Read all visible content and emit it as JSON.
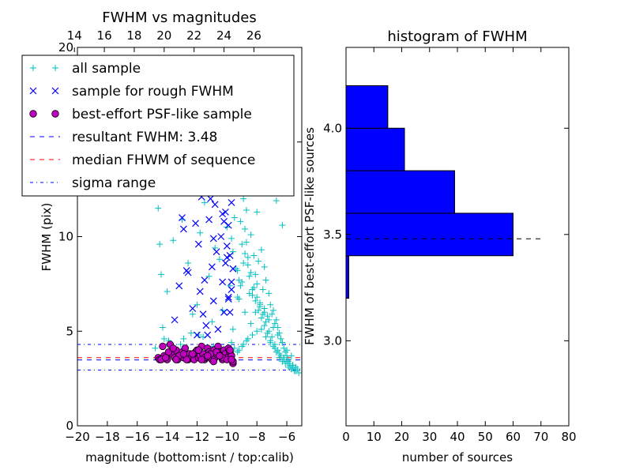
{
  "chart_data": [
    {
      "panel": "left",
      "type": "scatter",
      "title": "FWHM vs magnitudes",
      "xlabel": "magnitude (bottom:isnt / top:calib)",
      "ylabel": "FWHM (pix)",
      "xlim": [
        -20,
        -5
      ],
      "ylim": [
        0,
        20
      ],
      "xticks": [
        -20,
        -18,
        -16,
        -14,
        -12,
        -10,
        -8,
        -6
      ],
      "xtick_labels": [
        "−20",
        "−18",
        "−16",
        "−14",
        "−12",
        "−10",
        "−8",
        "−6"
      ],
      "yticks": [
        0,
        5,
        10,
        15,
        20
      ],
      "ytick_labels": [
        "0",
        "5",
        "10",
        "15",
        "20"
      ],
      "top_xticks_calib": [
        14,
        16,
        18,
        20,
        22,
        24,
        26
      ],
      "top_xtick_labels": [
        "14",
        "16",
        "18",
        "20",
        "22",
        "24",
        "26"
      ],
      "grid": false,
      "legend_position": "top-left",
      "legend": [
        {
          "label": "all sample",
          "marker": "plus",
          "color": "#00BFBF"
        },
        {
          "label": "sample for rough FWHM",
          "marker": "x",
          "color": "#0000FF"
        },
        {
          "label": "best-effort PSF-like sample",
          "marker": "circle",
          "color": "#BF00BF"
        },
        {
          "label": "resultant FWHM: 3.48",
          "marker": "dashed",
          "color": "#0000FF"
        },
        {
          "label": "median FHWM of sequence",
          "marker": "dashed",
          "color": "#FF0000"
        },
        {
          "label": "sigma range",
          "marker": "dashdot",
          "color": "#0000FF"
        }
      ],
      "hlines": [
        {
          "name": "resultant FWHM",
          "y": 3.48,
          "style": "dashed",
          "color": "#0000FF"
        },
        {
          "name": "median FHWM of sequence",
          "y": 3.6,
          "style": "dashed",
          "color": "#FF0000"
        },
        {
          "name": "sigma upper",
          "y": 4.3,
          "style": "dashdot",
          "color": "#0000FF"
        },
        {
          "name": "sigma lower",
          "y": 2.95,
          "style": "dashdot",
          "color": "#0000FF"
        }
      ],
      "series": [
        {
          "name": "all sample",
          "marker": "plus",
          "color": "#00BFBF",
          "x": [
            -14.6,
            -14.5,
            -14.4,
            -14.3,
            -14.2,
            -14.0,
            -13.6,
            -13.3,
            -13.0,
            -12.6,
            -12.3,
            -12.0,
            -11.8,
            -11.5,
            -11.2,
            -11.0,
            -10.8,
            -10.6,
            -10.5,
            -10.3,
            -10.2,
            -10.0,
            -9.9,
            -9.8,
            -9.7,
            -9.6,
            -9.5,
            -9.4,
            -9.3,
            -9.2,
            -9.1,
            -9.0,
            -9.0,
            -8.9,
            -8.8,
            -8.8,
            -8.7,
            -8.6,
            -8.5,
            -8.5,
            -8.4,
            -8.3,
            -8.2,
            -8.1,
            -8.0,
            -8.0,
            -7.9,
            -7.8,
            -7.7,
            -7.6,
            -7.5,
            -7.5,
            -7.4,
            -7.3,
            -7.2,
            -7.1,
            -7.0,
            -6.9,
            -6.8,
            -6.7,
            -6.6,
            -6.5,
            -6.4,
            -6.3,
            -6.2,
            -6.1,
            -6.0,
            -5.9,
            -5.8,
            -5.7,
            -5.6,
            -5.5,
            -5.4,
            -5.3,
            -5.2,
            -9.6,
            -9.4,
            -9.2,
            -9.0,
            -8.8,
            -8.6,
            -8.4,
            -8.2,
            -8.0,
            -7.8,
            -7.6,
            -7.4,
            -7.2,
            -7.0,
            -6.8,
            -6.6,
            -6.4,
            -6.2,
            -6.0,
            -5.8,
            -5.6,
            -5.4,
            -9.3,
            -9.1,
            -8.9,
            -8.7,
            -8.5,
            -8.3,
            -8.1,
            -7.9,
            -7.7,
            -7.5,
            -7.3,
            -7.1,
            -6.9,
            -6.7,
            -6.5,
            -6.3,
            -6.1,
            -5.9,
            -5.7,
            -5.5,
            -9.7,
            -9.5,
            -9.2,
            -8.9,
            -8.6,
            -8.3,
            -8.0,
            -7.7,
            -7.4,
            -7.1,
            -6.8,
            -6.5,
            -6.2,
            -5.9,
            -5.6,
            -9.8,
            -9.6,
            -9.3,
            -9.0,
            -8.7,
            -8.4,
            -8.1,
            -7.8,
            -7.5,
            -7.2,
            -6.9,
            -6.6,
            -6.3,
            -6.0,
            -5.7,
            -13.1,
            -12.4,
            -11.6,
            -10.9,
            -14.8,
            -13.9,
            -12.9,
            -11.9,
            -9.9,
            -9.5,
            -9.1,
            -8.7,
            -8.3,
            -7.9,
            -7.5,
            -7.1,
            -6.7,
            -6.3
          ],
          "y": [
            11.5,
            9.6,
            8.0,
            5.2,
            4.6,
            7.1,
            9.8,
            12.3,
            10.9,
            8.6,
            5.9,
            6.4,
            10.2,
            11.8,
            7.9,
            5.5,
            9.4,
            13.0,
            8.8,
            6.1,
            12.6,
            10.5,
            14.2,
            7.4,
            9.9,
            5.1,
            11.0,
            13.6,
            8.2,
            6.7,
            10.8,
            15.4,
            7.6,
            12.0,
            9.1,
            6.0,
            11.4,
            8.5,
            13.8,
            7.0,
            10.1,
            6.9,
            9.0,
            8.0,
            11.3,
            7.5,
            8.7,
            6.5,
            9.3,
            7.2,
            8.4,
            6.2,
            7.7,
            5.8,
            7.0,
            6.4,
            5.9,
            6.1,
            5.4,
            5.6,
            5.2,
            4.9,
            4.6,
            4.4,
            4.1,
            3.9,
            3.7,
            3.5,
            3.3,
            3.0,
            3.2,
            2.9,
            3.1,
            3.0,
            2.8,
            9.2,
            8.3,
            7.7,
            9.6,
            10.4,
            8.9,
            8.1,
            7.3,
            6.8,
            6.3,
            5.9,
            5.5,
            5.0,
            4.7,
            4.3,
            4.0,
            3.7,
            3.5,
            3.4,
            3.2,
            3.1,
            2.9,
            6.8,
            7.4,
            8.6,
            9.7,
            7.9,
            7.2,
            6.6,
            6.1,
            5.7,
            5.3,
            4.9,
            4.5,
            4.2,
            3.9,
            3.6,
            3.4,
            3.3,
            3.1,
            3.0,
            2.9,
            4.4,
            4.1,
            4.0,
            4.3,
            4.6,
            4.8,
            5.0,
            5.1,
            4.7,
            4.4,
            4.1,
            3.8,
            3.6,
            3.4,
            3.2,
            3.6,
            3.5,
            3.9,
            4.2,
            4.5,
            5.4,
            6.0,
            6.4,
            6.0,
            5.6,
            5.2,
            4.8,
            4.4,
            4.0,
            3.7,
            4.3,
            4.9,
            4.7,
            4.2,
            4.1,
            4.5,
            4.6,
            4.8,
            16.5,
            17.9,
            19.0,
            18.3,
            16.8,
            15.2,
            14.1,
            12.7,
            11.9,
            10.6
          ]
        },
        {
          "name": "sample for rough FWHM",
          "marker": "x",
          "color": "#0000FF",
          "x": [
            -13.5,
            -13.2,
            -12.9,
            -12.6,
            -12.3,
            -12.0,
            -11.9,
            -11.7,
            -11.5,
            -11.4,
            -11.2,
            -11.0,
            -10.9,
            -10.8,
            -10.7,
            -10.6,
            -10.5,
            -10.4,
            -10.3,
            -10.2,
            -10.1,
            -10.0,
            -10.0,
            -9.9,
            -9.9,
            -9.8,
            -9.8,
            -9.7,
            -9.7,
            -9.6,
            -13.0,
            -12.4,
            -11.8,
            -11.3,
            -10.9,
            -10.5,
            -10.2,
            -10.0,
            -9.8,
            -9.7,
            -12.7,
            -12.1,
            -11.6,
            -11.1,
            -10.7,
            -10.3,
            -10.1,
            -9.9,
            -13.3,
            -12.8
          ],
          "y": [
            5.6,
            7.4,
            10.4,
            8.1,
            6.2,
            4.8,
            9.6,
            12.1,
            7.7,
            5.3,
            10.9,
            8.4,
            6.6,
            11.7,
            9.2,
            5.1,
            12.8,
            10.0,
            7.6,
            6.0,
            11.3,
            13.2,
            8.9,
            10.6,
            6.8,
            12.4,
            9.0,
            7.2,
            11.8,
            8.3,
            11.0,
            12.4,
            7.1,
            4.8,
            9.9,
            12.9,
            10.8,
            9.5,
            6.0,
            7.6,
            8.2,
            10.7,
            5.9,
            12.0,
            13.1,
            11.2,
            8.6,
            6.7,
            12.6,
            13.3
          ]
        },
        {
          "name": "best-effort PSF-like sample",
          "marker": "circle",
          "color": "#BF00BF",
          "x": [
            -14.6,
            -14.5,
            -14.3,
            -14.2,
            -14.0,
            -13.8,
            -13.7,
            -13.5,
            -13.4,
            -13.3,
            -13.1,
            -13.0,
            -12.9,
            -12.8,
            -12.6,
            -12.5,
            -12.4,
            -12.2,
            -12.1,
            -12.0,
            -11.9,
            -11.8,
            -11.7,
            -11.6,
            -11.5,
            -11.4,
            -11.3,
            -11.2,
            -11.1,
            -11.0,
            -10.9,
            -10.8,
            -10.7,
            -10.6,
            -10.5,
            -10.4,
            -10.3,
            -10.2,
            -10.1,
            -10.0,
            -9.9,
            -9.8,
            -9.7,
            -9.6,
            -14.4,
            -13.9,
            -13.6,
            -13.2,
            -12.7,
            -12.3,
            -11.9,
            -11.5,
            -11.1,
            -10.7,
            -10.3,
            -10.0,
            -9.8,
            -9.6,
            -14.1,
            -12.9,
            -11.7,
            -10.5,
            -13.4,
            -11.3,
            -10.9,
            -9.7
          ],
          "y": [
            3.6,
            3.5,
            4.2,
            3.7,
            3.5,
            4.3,
            3.8,
            3.6,
            4.0,
            3.5,
            3.7,
            3.9,
            3.6,
            4.1,
            3.5,
            3.8,
            3.6,
            3.5,
            3.9,
            4.0,
            3.6,
            3.7,
            4.2,
            3.8,
            3.5,
            3.6,
            4.1,
            3.9,
            3.7,
            3.5,
            4.0,
            3.6,
            3.8,
            4.2,
            3.9,
            3.7,
            3.5,
            4.0,
            3.8,
            3.6,
            4.1,
            3.9,
            3.7,
            3.3,
            3.5,
            3.9,
            4.1,
            3.7,
            3.5,
            3.8,
            4.0,
            3.6,
            3.8,
            3.9,
            3.6,
            3.5,
            4.0,
            3.4,
            3.6,
            3.8,
            3.5,
            3.7,
            3.5,
            3.7,
            3.4,
            3.5
          ]
        }
      ]
    },
    {
      "panel": "right",
      "type": "bar",
      "orientation": "horizontal",
      "title": "histogram of FWHM",
      "xlabel": "number of sources",
      "ylabel": "FWHM of best-effort PSF-like sources",
      "xlim": [
        0,
        80
      ],
      "ylim": [
        2.6,
        4.38
      ],
      "xticks": [
        0,
        10,
        20,
        30,
        40,
        50,
        60,
        70,
        80
      ],
      "xtick_labels": [
        "0",
        "10",
        "20",
        "30",
        "40",
        "50",
        "60",
        "70",
        "80"
      ],
      "yticks": [
        3.0,
        3.5,
        4.0
      ],
      "ytick_labels": [
        "3.0",
        "3.5",
        "4.0"
      ],
      "color": "#0000FF",
      "bins": [
        {
          "low": 3.2,
          "high": 3.4,
          "count": 1
        },
        {
          "low": 3.4,
          "high": 3.6,
          "count": 60
        },
        {
          "low": 3.6,
          "high": 3.8,
          "count": 39
        },
        {
          "low": 3.8,
          "high": 4.0,
          "count": 21
        },
        {
          "low": 4.0,
          "high": 4.2,
          "count": 15
        }
      ],
      "hline": {
        "y": 3.48,
        "x_range": [
          0,
          71.5
        ],
        "style": "dashed",
        "color": "#000000"
      }
    }
  ]
}
